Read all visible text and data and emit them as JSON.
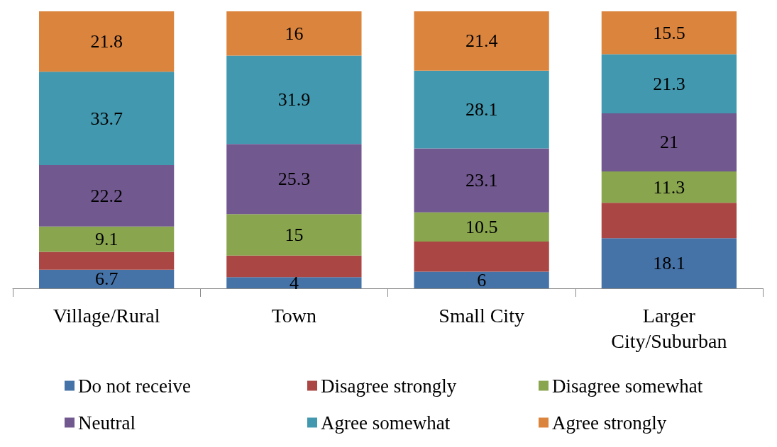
{
  "chart_data": {
    "type": "bar",
    "stacked": true,
    "categories": [
      "Village/Rural",
      "Town",
      "Small City",
      "Larger City/Suburban"
    ],
    "ylim": [
      0,
      100
    ],
    "tick_labels": "x",
    "legend": "bottom",
    "series": [
      {
        "name": "Do not receive",
        "color": "#4572a7",
        "values": [
          6.7,
          4,
          6,
          18.1
        ],
        "value_labels": [
          "6.7",
          "4",
          "6",
          "18.1"
        ]
      },
      {
        "name": "Disagree strongly",
        "color": "#aa4643",
        "values": [
          6.5,
          7.8,
          10.9,
          12.8
        ],
        "value_labels": [
          null,
          null,
          null,
          null
        ]
      },
      {
        "name": "Disagree somewhat",
        "color": "#89a54e",
        "values": [
          9.1,
          15,
          10.5,
          11.3
        ],
        "value_labels": [
          "9.1",
          "15",
          "10.5",
          "11.3"
        ]
      },
      {
        "name": "Neutral",
        "color": "#71588f",
        "values": [
          22.2,
          25.3,
          23.1,
          21
        ],
        "value_labels": [
          "22.2",
          "25.3",
          "23.1",
          "21"
        ]
      },
      {
        "name": "Agree somewhat",
        "color": "#4198af",
        "values": [
          33.7,
          31.9,
          28.1,
          21.3
        ],
        "value_labels": [
          "33.7",
          "31.9",
          "28.1",
          "21.3"
        ]
      },
      {
        "name": "Agree strongly",
        "color": "#db843d",
        "values": [
          21.8,
          16,
          21.4,
          15.5
        ],
        "value_labels": [
          "21.8",
          "16",
          "21.4",
          "15.5"
        ]
      }
    ]
  }
}
